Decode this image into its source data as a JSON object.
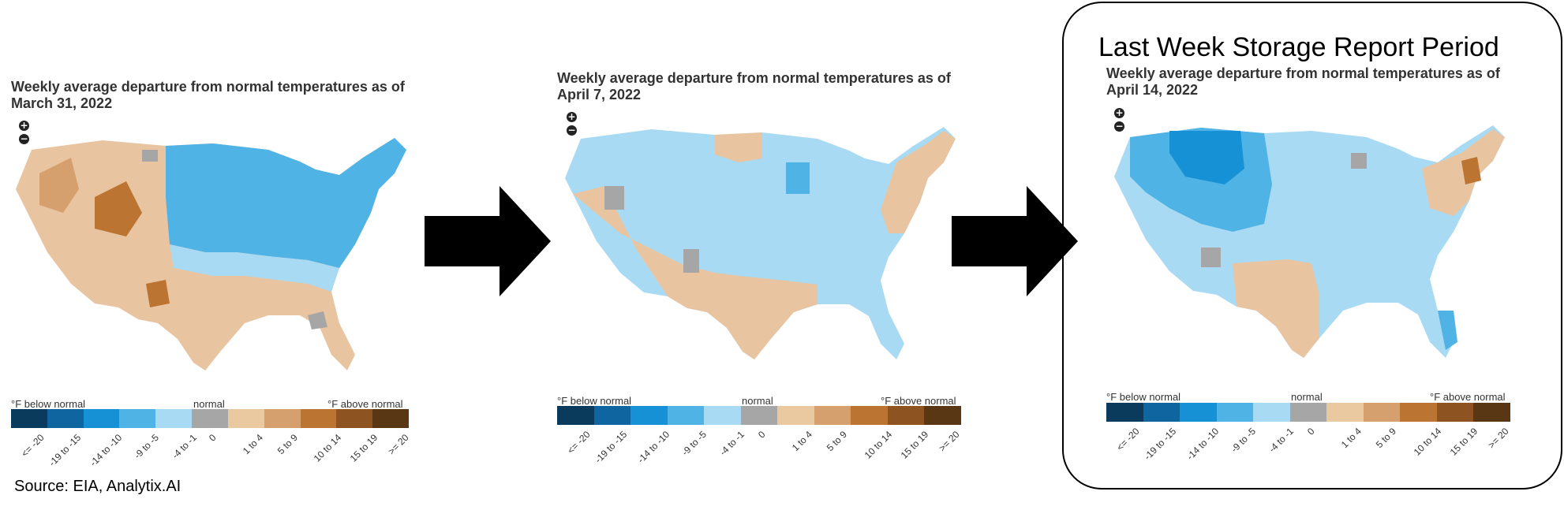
{
  "source_text": "Source: EIA, Analytix.AI",
  "highlight_title": "Last Week Storage Report Period",
  "legend": {
    "below_label": "°F below normal",
    "normal_label": "normal",
    "above_label": "°F above normal",
    "bins": [
      "<= -20",
      "-19 to -15",
      "-14 to -10",
      "-9 to -5",
      "-4 to -1",
      "0",
      "1 to 4",
      "5 to 9",
      "10 to 14",
      "15 to 19",
      ">= 20"
    ],
    "colors": [
      "#0a3a5c",
      "#0f65a0",
      "#1691d6",
      "#4fb3e6",
      "#a9daf3",
      "#a6a6a6",
      "#ebc9a0",
      "#d5a06e",
      "#bb7431",
      "#8d5320",
      "#5a3714"
    ]
  },
  "panels": [
    {
      "title": "Weekly average departure from normal temperatures as of March 31, 2022",
      "dominant_west": "#e8c4a0",
      "dominant_east": "#6fc0ea"
    },
    {
      "title": "Weekly average departure from normal temperatures as of April 7, 2022",
      "dominant_west": "#a9daf3",
      "dominant_east": "#a9daf3"
    },
    {
      "title": "Weekly average departure from normal temperatures as of April 14, 2022",
      "dominant_west": "#2b9ee0",
      "dominant_east": "#a9daf3"
    }
  ],
  "zoom_in_label": "+",
  "zoom_out_label": "−"
}
